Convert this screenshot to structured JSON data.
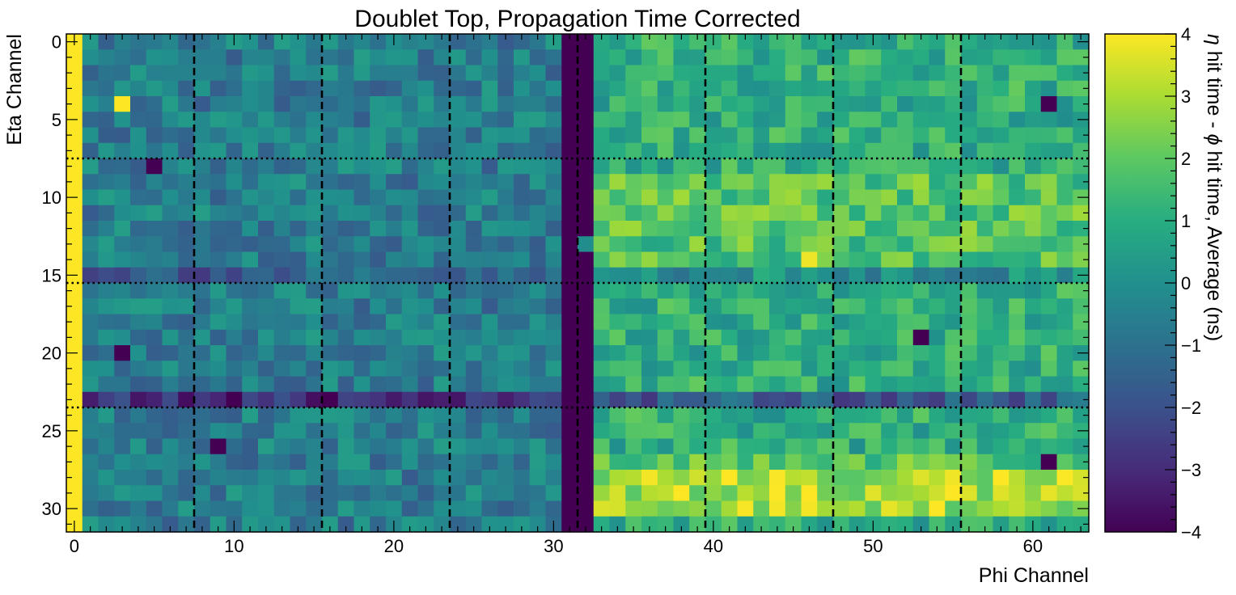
{
  "chart_data": {
    "type": "heatmap",
    "title": "Doublet Top, Propagation Time Corrected",
    "xlabel": "Phi Channel",
    "ylabel": "Eta Channel",
    "colorbar_label_parts": [
      "η",
      " hit time - ",
      "ϕ",
      " hit time, Average (ns)"
    ],
    "colormap": "viridis",
    "xlim": [
      -0.5,
      63.5
    ],
    "ylim": [
      31.5,
      -0.5
    ],
    "zlim": [
      -4,
      4
    ],
    "x_ticks": [
      0,
      10,
      20,
      30,
      40,
      50,
      60
    ],
    "y_ticks": [
      0,
      5,
      10,
      15,
      20,
      25,
      30
    ],
    "z_ticks": [
      -4,
      -3,
      -2,
      -1,
      0,
      1,
      2,
      3,
      4
    ],
    "vertical_dashed_lines_x": [
      7.5,
      15.5,
      23.5,
      31.5,
      39.5,
      47.5,
      55.5
    ],
    "horizontal_dotted_lines_y": [
      7.5,
      15.5,
      23.5
    ],
    "n_phi": 64,
    "n_eta": 32,
    "features": {
      "column_0_value": 4,
      "column_31_value": -4,
      "left_half_typical": -0.6,
      "right_half_typical": 1.0,
      "row_23_left_typical": -3.0,
      "rows_27_30_right_typical": 3.0,
      "hot_cells": [
        [
          3,
          4,
          4
        ],
        [
          38,
          29,
          4
        ],
        [
          46,
          29,
          4
        ],
        [
          54,
          30,
          4
        ],
        [
          46,
          14,
          3.8
        ]
      ],
      "cold_cells": [
        [
          5,
          8,
          -4
        ],
        [
          3,
          20,
          -4
        ],
        [
          9,
          26,
          -4
        ],
        [
          61,
          4,
          -4
        ],
        [
          53,
          19,
          -4
        ],
        [
          61,
          27,
          -4
        ]
      ]
    }
  }
}
